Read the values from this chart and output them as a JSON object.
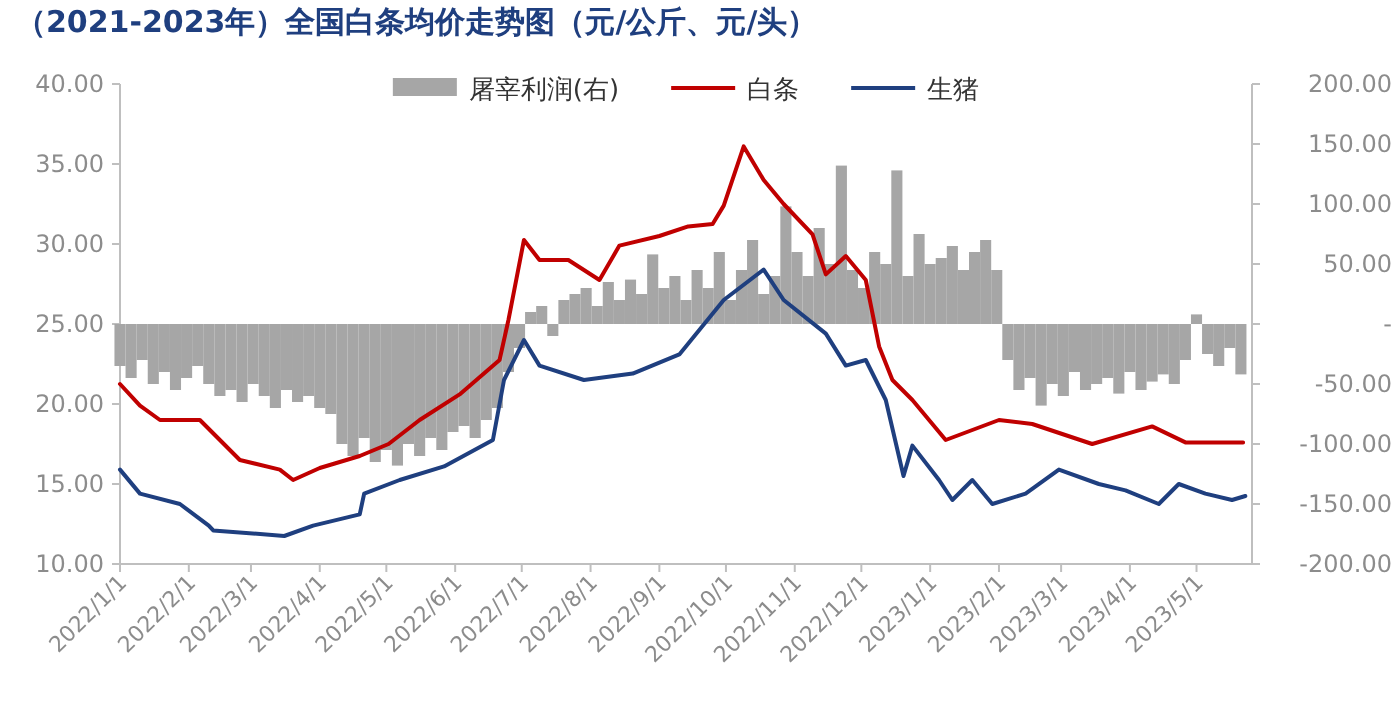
{
  "chart_data": {
    "type": "line",
    "title": "（2021-2023年）全国白条均价走势图（元/公斤、元/头）",
    "xlim": [
      "2022-01-01",
      "2023-05-26"
    ],
    "xticks": [
      {
        "value": "2022-01-01",
        "label": "2022/1/1"
      },
      {
        "value": "2022-02-01",
        "label": "2022/2/1"
      },
      {
        "value": "2022-03-01",
        "label": "2022/3/1"
      },
      {
        "value": "2022-04-01",
        "label": "2022/4/1"
      },
      {
        "value": "2022-05-01",
        "label": "2022/5/1"
      },
      {
        "value": "2022-06-01",
        "label": "2022/6/1"
      },
      {
        "value": "2022-07-01",
        "label": "2022/7/1"
      },
      {
        "value": "2022-08-01",
        "label": "2022/8/1"
      },
      {
        "value": "2022-09-01",
        "label": "2022/9/1"
      },
      {
        "value": "2022-10-01",
        "label": "2022/10/1"
      },
      {
        "value": "2022-11-01",
        "label": "2022/11/1"
      },
      {
        "value": "2022-12-01",
        "label": "2022/12/1"
      },
      {
        "value": "2023-01-01",
        "label": "2023/1/1"
      },
      {
        "value": "2023-02-01",
        "label": "2023/2/1"
      },
      {
        "value": "2023-03-01",
        "label": "2023/3/1"
      },
      {
        "value": "2023-04-01",
        "label": "2023/4/1"
      },
      {
        "value": "2023-05-01",
        "label": "2023/5/1"
      }
    ],
    "ylim": [
      10,
      40
    ],
    "yticks": [
      {
        "value": 10,
        "label": "10.00"
      },
      {
        "value": 15,
        "label": "15.00"
      },
      {
        "value": 20,
        "label": "20.00"
      },
      {
        "value": 25,
        "label": "25.00"
      },
      {
        "value": 30,
        "label": "30.00"
      },
      {
        "value": 35,
        "label": "35.00"
      },
      {
        "value": 40,
        "label": "40.00"
      }
    ],
    "y2lim": [
      -200,
      200
    ],
    "y2ticks": [
      {
        "value": -200,
        "label": "-200.00"
      },
      {
        "value": -150,
        "label": "-150.00"
      },
      {
        "value": -100,
        "label": "-100.00"
      },
      {
        "value": -50,
        "label": "-50.00"
      },
      {
        "value": 0,
        "label": "-"
      },
      {
        "value": 50,
        "label": "50.00"
      },
      {
        "value": 100,
        "label": "100.00"
      },
      {
        "value": 150,
        "label": "150.00"
      },
      {
        "value": 200,
        "label": "200.00"
      }
    ],
    "grid": false,
    "legend": "top",
    "series": [
      {
        "name": "屠宰利润(右)",
        "type": "bar",
        "axis": "y2",
        "color": "#a6a6a6",
        "x": [
          "2022-01-01",
          "2022-01-06",
          "2022-01-11",
          "2022-01-16",
          "2022-01-21",
          "2022-01-26",
          "2022-01-31",
          "2022-02-05",
          "2022-02-10",
          "2022-02-15",
          "2022-02-20",
          "2022-02-25",
          "2022-03-02",
          "2022-03-07",
          "2022-03-12",
          "2022-03-17",
          "2022-03-22",
          "2022-03-27",
          "2022-04-01",
          "2022-04-06",
          "2022-04-11",
          "2022-04-16",
          "2022-04-21",
          "2022-04-26",
          "2022-05-01",
          "2022-05-06",
          "2022-05-11",
          "2022-05-16",
          "2022-05-21",
          "2022-05-26",
          "2022-05-31",
          "2022-06-05",
          "2022-06-10",
          "2022-06-15",
          "2022-06-20",
          "2022-06-25",
          "2022-06-30",
          "2022-07-05",
          "2022-07-10",
          "2022-07-15",
          "2022-07-20",
          "2022-07-25",
          "2022-07-30",
          "2022-08-04",
          "2022-08-09",
          "2022-08-14",
          "2022-08-19",
          "2022-08-24",
          "2022-08-29",
          "2022-09-03",
          "2022-09-08",
          "2022-09-13",
          "2022-09-18",
          "2022-09-23",
          "2022-09-28",
          "2022-10-03",
          "2022-10-08",
          "2022-10-13",
          "2022-10-18",
          "2022-10-23",
          "2022-10-28",
          "2022-11-02",
          "2022-11-07",
          "2022-11-12",
          "2022-11-17",
          "2022-11-22",
          "2022-11-27",
          "2022-12-02",
          "2022-12-07",
          "2022-12-12",
          "2022-12-17",
          "2022-12-22",
          "2022-12-27",
          "2023-01-01",
          "2023-01-06",
          "2023-01-11",
          "2023-01-16",
          "2023-01-21",
          "2023-01-26",
          "2023-01-31",
          "2023-02-05",
          "2023-02-10",
          "2023-02-15",
          "2023-02-20",
          "2023-02-25",
          "2023-03-02",
          "2023-03-07",
          "2023-03-12",
          "2023-03-17",
          "2023-03-22",
          "2023-03-27",
          "2023-04-01",
          "2023-04-06",
          "2023-04-11",
          "2023-04-16",
          "2023-04-21",
          "2023-04-26",
          "2023-05-01",
          "2023-05-06",
          "2023-05-11",
          "2023-05-16",
          "2023-05-21"
        ],
        "values": [
          -35,
          -45,
          -30,
          -50,
          -40,
          -55,
          -45,
          -35,
          -50,
          -60,
          -55,
          -65,
          -50,
          -60,
          -70,
          -55,
          -65,
          -60,
          -70,
          -75,
          -100,
          -110,
          -95,
          -115,
          -105,
          -118,
          -100,
          -110,
          -95,
          -105,
          -90,
          -85,
          -95,
          -80,
          -70,
          -40,
          -20,
          10,
          15,
          -10,
          20,
          25,
          30,
          15,
          35,
          20,
          37,
          25,
          58,
          30,
          40,
          20,
          45,
          30,
          60,
          20,
          45,
          70,
          25,
          40,
          98,
          60,
          40,
          80,
          50,
          132,
          45,
          30,
          60,
          50,
          128,
          40,
          75,
          50,
          55,
          65,
          45,
          60,
          70,
          45,
          -30,
          -55,
          -45,
          -68,
          -50,
          -60,
          -40,
          -55,
          -50,
          -45,
          -58,
          -40,
          -55,
          -48,
          -42,
          -50,
          -30,
          8,
          -25,
          -35,
          -20,
          -42
        ]
      },
      {
        "name": "白条",
        "color": "#c00000",
        "x": [
          "2022-01-01",
          "2022-01-10",
          "2022-01-19",
          "2022-02-06",
          "2022-02-15",
          "2022-02-24",
          "2022-03-14",
          "2022-03-20",
          "2022-04-01",
          "2022-04-19",
          "2022-05-02",
          "2022-05-16",
          "2022-06-03",
          "2022-06-21",
          "2022-06-25",
          "2022-07-02",
          "2022-07-09",
          "2022-07-22",
          "2022-08-05",
          "2022-08-14",
          "2022-09-01",
          "2022-09-14",
          "2022-09-25",
          "2022-09-30",
          "2022-10-09",
          "2022-10-18",
          "2022-10-27",
          "2022-11-09",
          "2022-11-15",
          "2022-11-24",
          "2022-12-03",
          "2022-12-09",
          "2022-12-15",
          "2022-12-24",
          "2023-01-08",
          "2023-02-01",
          "2023-02-16",
          "2023-03-15",
          "2023-04-11",
          "2023-04-26",
          "2023-05-17",
          "2023-05-22"
        ],
        "values": [
          21.25,
          19.9,
          19.0,
          19.0,
          17.75,
          16.5,
          15.9,
          15.25,
          16.0,
          16.75,
          17.5,
          19.0,
          20.6,
          22.75,
          25.25,
          30.25,
          29.0,
          29.0,
          27.75,
          29.9,
          30.5,
          31.1,
          31.25,
          32.4,
          36.1,
          34.0,
          32.5,
          30.6,
          28.1,
          29.25,
          27.75,
          23.6,
          21.5,
          20.25,
          17.75,
          19.0,
          18.75,
          17.5,
          18.6,
          17.6,
          17.6,
          17.6
        ]
      },
      {
        "name": "生猪",
        "color": "#1f3f7f",
        "x": [
          "2022-01-01",
          "2022-01-10",
          "2022-01-28",
          "2022-02-10",
          "2022-02-12",
          "2022-03-16",
          "2022-03-29",
          "2022-04-19",
          "2022-04-21",
          "2022-05-07",
          "2022-05-27",
          "2022-06-18",
          "2022-06-23",
          "2022-07-02",
          "2022-07-09",
          "2022-07-29",
          "2022-08-20",
          "2022-09-10",
          "2022-09-30",
          "2022-10-18",
          "2022-10-27",
          "2022-11-15",
          "2022-11-24",
          "2022-12-03",
          "2022-12-12",
          "2022-12-20",
          "2022-12-24",
          "2023-01-05",
          "2023-01-11",
          "2023-01-20",
          "2023-01-29",
          "2023-02-13",
          "2023-02-28",
          "2023-03-18",
          "2023-03-30",
          "2023-04-14",
          "2023-04-23",
          "2023-05-05",
          "2023-05-17",
          "2023-05-23"
        ],
        "values": [
          15.9,
          14.4,
          13.75,
          12.4,
          12.1,
          11.75,
          12.4,
          13.1,
          14.4,
          15.25,
          16.1,
          17.75,
          21.5,
          24.0,
          22.4,
          21.5,
          21.9,
          23.1,
          26.5,
          28.4,
          26.5,
          24.4,
          22.4,
          22.75,
          20.25,
          15.5,
          17.4,
          15.25,
          14.0,
          15.25,
          13.75,
          14.4,
          15.9,
          15.0,
          14.6,
          13.75,
          15.0,
          14.4,
          14.0,
          14.25
        ]
      }
    ]
  }
}
